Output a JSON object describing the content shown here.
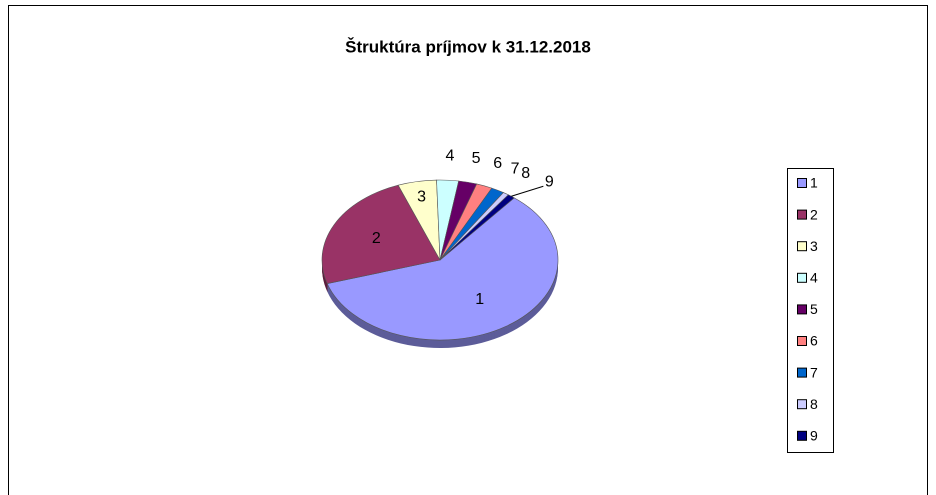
{
  "chart_data": {
    "type": "pie",
    "title": "Štruktúra  príjmov  k 31.12.2018",
    "categories": [
      "1",
      "2",
      "3",
      "4",
      "5",
      "6",
      "7",
      "8",
      "9"
    ],
    "values": [
      59.4,
      24,
      5.3,
      3,
      2.5,
      2.2,
      1.8,
      0.8,
      1.0
    ],
    "colors": [
      "#9999ff",
      "#993366",
      "#ffffcc",
      "#ccffff",
      "#660066",
      "#ff8080",
      "#0066cc",
      "#ccccff",
      "#000080"
    ],
    "legend": "right"
  }
}
